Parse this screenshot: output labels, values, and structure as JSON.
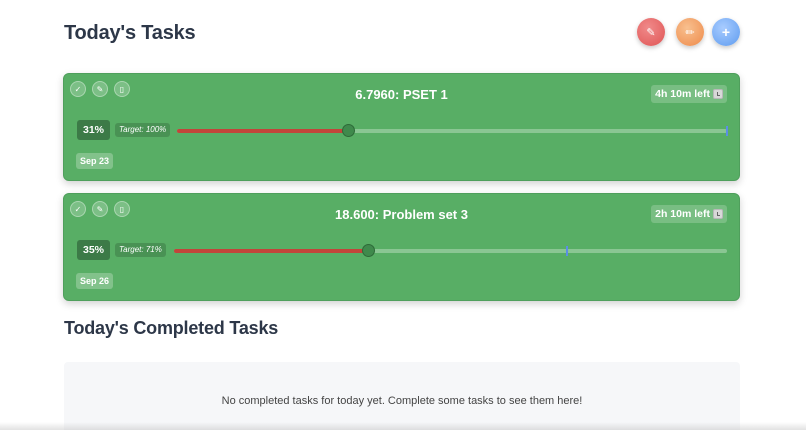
{
  "header": {
    "title": "Today's Tasks",
    "buttons": [
      {
        "icon": "eraser-icon",
        "glyph": "✎",
        "color": "#e05555"
      },
      {
        "icon": "pencil-icon",
        "glyph": "✏",
        "color": "#ee8a4a"
      },
      {
        "icon": "plus-icon",
        "glyph": "+",
        "color": "#5e9bef"
      }
    ]
  },
  "tasks": [
    {
      "title": "6.7960: PSET 1",
      "time_left": "4h 10m left",
      "progress_label": "31%",
      "progress": 0.31,
      "target_label": "Target: 100%",
      "target": 1.0,
      "date": "Sep 23"
    },
    {
      "title": "18.600: Problem set 3",
      "time_left": "2h 10m left",
      "progress_label": "35%",
      "progress": 0.35,
      "target_label": "Target: 71%",
      "target": 0.71,
      "date": "Sep 26"
    }
  ],
  "completed": {
    "title": "Today's Completed Tasks",
    "empty_message": "No completed tasks for today yet. Complete some tasks to see them here!"
  },
  "colors": {
    "card_green": "#58ae65",
    "progress_red": "#c2453a",
    "target_blue": "#5b8ee6"
  }
}
